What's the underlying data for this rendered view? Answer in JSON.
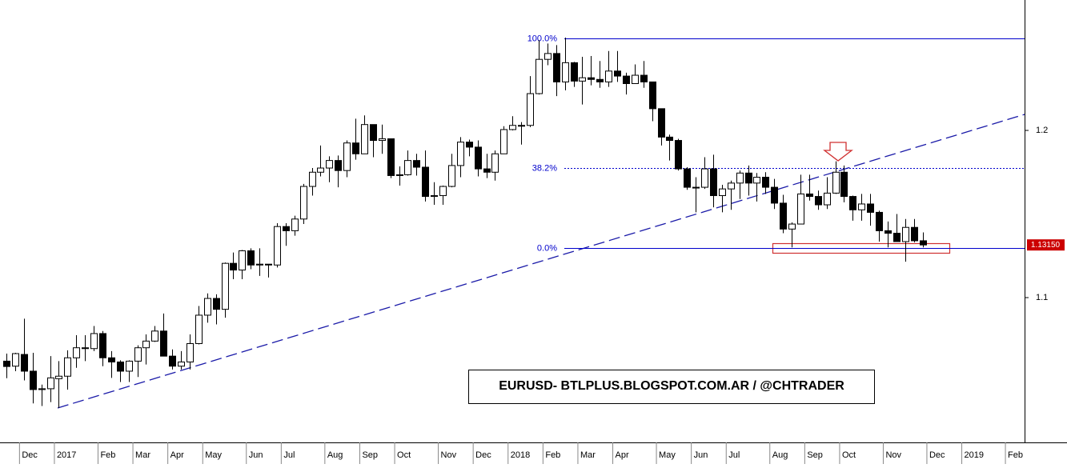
{
  "chart_data": {
    "type": "candlestick",
    "annotation": "EURUSD- BTLPLUS.BLOGSPOT.COM.AR / @CHTRADER",
    "categories": [
      null,
      null,
      "Dec",
      null,
      null,
      null,
      "2017",
      null,
      null,
      null,
      null,
      "Feb",
      null,
      null,
      null,
      "Mar",
      null,
      null,
      null,
      "Apr",
      null,
      null,
      null,
      "May",
      null,
      null,
      null,
      null,
      "Jun",
      null,
      null,
      null,
      "Jul",
      null,
      null,
      null,
      null,
      "Aug",
      null,
      null,
      null,
      "Sep",
      null,
      null,
      null,
      "Oct",
      null,
      null,
      null,
      null,
      "Nov",
      null,
      null,
      null,
      "Dec",
      null,
      null,
      null,
      "2018",
      null,
      null,
      null,
      "Feb",
      null,
      null,
      null,
      "Mar",
      null,
      null,
      null,
      "Apr",
      null,
      null,
      null,
      null,
      "May",
      null,
      null,
      null,
      "Jun",
      null,
      null,
      null,
      "Jul",
      null,
      null,
      null,
      null,
      "Aug",
      null,
      null,
      null,
      "Sep",
      null,
      null,
      null,
      "Oct",
      null,
      null,
      null,
      null,
      "Nov",
      null,
      null,
      null,
      null,
      "Dec",
      null,
      null,
      null,
      "2019",
      null,
      null,
      null,
      null,
      "Feb"
    ],
    "open": [
      1.062,
      1.059,
      1.066,
      1.056,
      1.045,
      1.0455,
      1.0515,
      1.053,
      1.064,
      1.07,
      1.0695,
      1.0785,
      1.064,
      1.0615,
      1.056,
      1.062,
      1.07,
      1.074,
      1.08,
      1.065,
      1.059,
      1.0615,
      1.0725,
      1.0895,
      1.0995,
      1.093,
      1.1205,
      1.1165,
      1.128,
      1.1195,
      1.12,
      1.1195,
      1.1425,
      1.14,
      1.147,
      1.1665,
      1.175,
      1.1775,
      1.182,
      1.176,
      1.1925,
      1.186,
      1.2035,
      1.194,
      1.195,
      1.173,
      1.1735,
      1.182,
      1.178,
      1.1605,
      1.161,
      1.1665,
      1.179,
      1.193,
      1.19,
      1.177,
      1.175,
      1.186,
      1.2005,
      1.203,
      1.203,
      1.222,
      1.2425,
      1.246,
      1.229,
      1.2405,
      1.2295,
      1.2315,
      1.2305,
      1.229,
      1.2355,
      1.2325,
      1.228,
      1.233,
      1.229,
      1.213,
      1.196,
      1.194,
      1.177,
      1.166,
      1.166,
      1.177,
      1.161,
      1.165,
      1.1685,
      1.1745,
      1.1685,
      1.172,
      1.166,
      1.1565,
      1.141,
      1.144,
      1.162,
      1.1605,
      1.1555,
      1.1625,
      1.175,
      1.1605,
      1.1525,
      1.156,
      1.151,
      1.14,
      1.1385,
      1.1335,
      1.142,
      1.134,
      null,
      null,
      null,
      null,
      null,
      null,
      null,
      null,
      null,
      null
    ],
    "high": [
      1.0665,
      1.067,
      1.0874,
      1.067,
      1.048,
      1.065,
      1.062,
      1.0685,
      1.0775,
      1.0775,
      1.083,
      1.08,
      1.068,
      1.0625,
      1.0625,
      1.0715,
      1.078,
      1.083,
      1.0905,
      1.069,
      1.068,
      1.078,
      1.095,
      1.1025,
      1.102,
      1.121,
      1.127,
      1.1285,
      1.1295,
      1.1295,
      1.12,
      1.1445,
      1.1445,
      1.149,
      1.168,
      1.1775,
      1.191,
      1.1845,
      1.185,
      1.194,
      1.207,
      1.209,
      1.2035,
      1.2035,
      1.195,
      1.1785,
      1.188,
      1.186,
      1.188,
      1.169,
      1.167,
      1.186,
      1.196,
      1.1945,
      1.194,
      1.186,
      1.188,
      1.2025,
      1.2085,
      1.205,
      1.2325,
      1.254,
      1.252,
      1.251,
      1.2555,
      1.241,
      1.244,
      1.2445,
      1.2415,
      1.2475,
      1.2475,
      1.2345,
      1.2395,
      1.2415,
      1.229,
      1.213,
      1.1975,
      1.195,
      1.178,
      1.172,
      1.184,
      1.1855,
      1.1675,
      1.17,
      1.176,
      1.179,
      1.1745,
      1.175,
      1.171,
      1.1615,
      1.145,
      1.1735,
      1.1735,
      1.164,
      1.172,
      1.1815,
      1.179,
      1.161,
      1.162,
      1.162,
      1.152,
      1.1455,
      1.15,
      1.147,
      1.147,
      1.139,
      null,
      null,
      null,
      null,
      null,
      null,
      null,
      null,
      null,
      null
    ],
    "low": [
      1.0518,
      1.056,
      1.0505,
      1.0367,
      1.0352,
      1.0375,
      1.034,
      1.045,
      1.058,
      1.062,
      1.068,
      1.059,
      1.052,
      1.0495,
      1.0495,
      1.0525,
      1.06,
      1.0735,
      1.065,
      1.057,
      1.057,
      1.057,
      1.072,
      1.085,
      1.084,
      1.088,
      1.111,
      1.111,
      1.117,
      1.113,
      1.112,
      1.118,
      1.131,
      1.137,
      1.144,
      1.161,
      1.1725,
      1.169,
      1.166,
      1.172,
      1.1825,
      1.186,
      1.184,
      1.186,
      1.1715,
      1.167,
      1.173,
      1.173,
      1.1575,
      1.1555,
      1.1555,
      1.166,
      1.172,
      1.1845,
      1.1725,
      1.1715,
      1.17,
      1.186,
      1.2,
      1.1915,
      1.202,
      1.2215,
      1.239,
      1.2205,
      1.224,
      1.226,
      1.2155,
      1.227,
      1.2255,
      1.226,
      1.229,
      1.2215,
      1.228,
      1.2255,
      1.2055,
      1.191,
      1.182,
      1.176,
      1.1645,
      1.151,
      1.165,
      1.154,
      1.151,
      1.1525,
      1.159,
      1.161,
      1.1575,
      1.162,
      1.153,
      1.1385,
      1.13,
      1.144,
      1.158,
      1.1525,
      1.153,
      1.162,
      1.157,
      1.146,
      1.146,
      1.143,
      1.1335,
      1.13,
      1.1335,
      1.1215,
      1.133,
      1.13,
      null,
      null,
      null,
      null,
      null,
      null,
      null,
      null,
      null,
      null
    ],
    "close": [
      1.0588,
      1.0665,
      1.056,
      1.045,
      1.0455,
      1.052,
      1.053,
      1.064,
      1.07,
      1.0695,
      1.0785,
      1.064,
      1.0615,
      1.056,
      1.062,
      1.07,
      1.074,
      1.08,
      1.065,
      1.059,
      1.0615,
      1.0725,
      1.0895,
      1.0995,
      1.093,
      1.1205,
      1.1165,
      1.128,
      1.1195,
      1.12,
      1.1195,
      1.1425,
      1.14,
      1.147,
      1.1665,
      1.175,
      1.1775,
      1.182,
      1.176,
      1.1925,
      1.186,
      1.2035,
      1.194,
      1.195,
      1.173,
      1.1735,
      1.182,
      1.178,
      1.1605,
      1.161,
      1.1665,
      1.179,
      1.193,
      1.19,
      1.177,
      1.175,
      1.186,
      1.2005,
      1.203,
      1.203,
      1.222,
      1.2425,
      1.246,
      1.229,
      1.2405,
      1.2295,
      1.2315,
      1.2305,
      1.229,
      1.2355,
      1.2325,
      1.228,
      1.233,
      1.229,
      1.213,
      1.196,
      1.194,
      1.177,
      1.166,
      1.166,
      1.177,
      1.161,
      1.165,
      1.1685,
      1.1745,
      1.1685,
      1.172,
      1.166,
      1.1565,
      1.141,
      1.144,
      1.162,
      1.1605,
      1.1555,
      1.1625,
      1.175,
      1.1605,
      1.1525,
      1.156,
      1.151,
      1.14,
      1.1385,
      1.1335,
      1.142,
      1.134,
      1.1315,
      null,
      null,
      null,
      null,
      null,
      null,
      null,
      null,
      null,
      null
    ],
    "up_color": "#ffffff",
    "down_color": "#000000",
    "ylim": [
      1.0134,
      1.278
    ],
    "yticks": [
      1.1,
      1.2
    ],
    "fib_levels": [
      {
        "label": "100.0%",
        "value": 1.255,
        "style": "solid"
      },
      {
        "label": "38.2%",
        "value": 1.1775,
        "style": "dotted"
      },
      {
        "label": "0.0%",
        "value": 1.1297,
        "style": "solid"
      }
    ],
    "fib_color": "#0000cc",
    "last_price": {
      "value": 1.1315,
      "label": "1.13150"
    }
  }
}
